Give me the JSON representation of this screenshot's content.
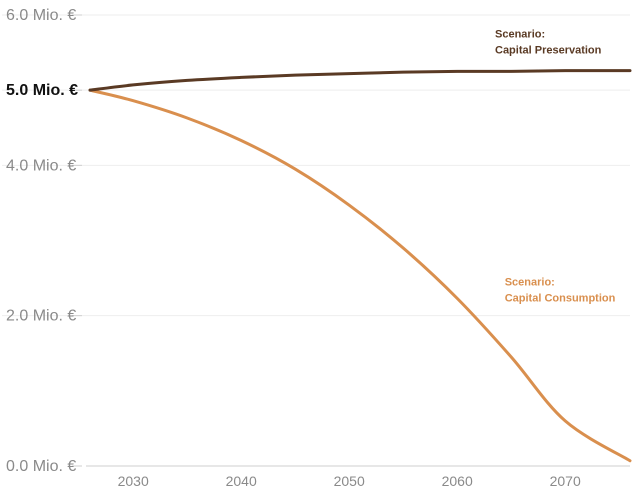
{
  "chart_data": {
    "type": "line",
    "x_range": [
      2026,
      2076
    ],
    "y_range": [
      0,
      6.0
    ],
    "y_ticks": [
      {
        "value": 6.0,
        "label": "6.0 Mio. €",
        "bold": false
      },
      {
        "value": 5.0,
        "label": "5.0 Mio. €",
        "bold": true
      },
      {
        "value": 4.0,
        "label": "4.0 Mio. €",
        "bold": false
      },
      {
        "value": 2.0,
        "label": "2.0 Mio. €",
        "bold": false
      },
      {
        "value": 0.0,
        "label": "0.0 Mio. €",
        "bold": false
      }
    ],
    "x_ticks": [
      {
        "value": 2030,
        "label": "2030"
      },
      {
        "value": 2040,
        "label": "2040"
      },
      {
        "value": 2050,
        "label": "2050"
      },
      {
        "value": 2060,
        "label": "2060"
      },
      {
        "value": 2070,
        "label": "2070"
      }
    ],
    "grid": true,
    "series": [
      {
        "name": "Scenario: Capital Preservation",
        "label_lines": [
          "Scenario:",
          "Capital Preservation"
        ],
        "label_anchor": {
          "x": 2063.5,
          "y": 5.7
        },
        "color": "#5a3a24",
        "x": [
          2026,
          2030,
          2035,
          2040,
          2045,
          2050,
          2055,
          2060,
          2065,
          2070,
          2076
        ],
        "y": [
          5.0,
          5.07,
          5.13,
          5.17,
          5.2,
          5.22,
          5.24,
          5.25,
          5.25,
          5.26,
          5.26
        ]
      },
      {
        "name": "Scenario: Capital Consumption",
        "label_lines": [
          "Scenario:",
          "Capital Consumption"
        ],
        "label_anchor": {
          "x": 2064.4,
          "y": 2.4
        },
        "color": "#d98f4e",
        "x": [
          2026,
          2030,
          2035,
          2040,
          2045,
          2050,
          2055,
          2060,
          2065,
          2070,
          2076
        ],
        "y": [
          5.0,
          4.86,
          4.63,
          4.33,
          3.95,
          3.47,
          2.9,
          2.23,
          1.45,
          0.6,
          0.07
        ]
      }
    ]
  }
}
